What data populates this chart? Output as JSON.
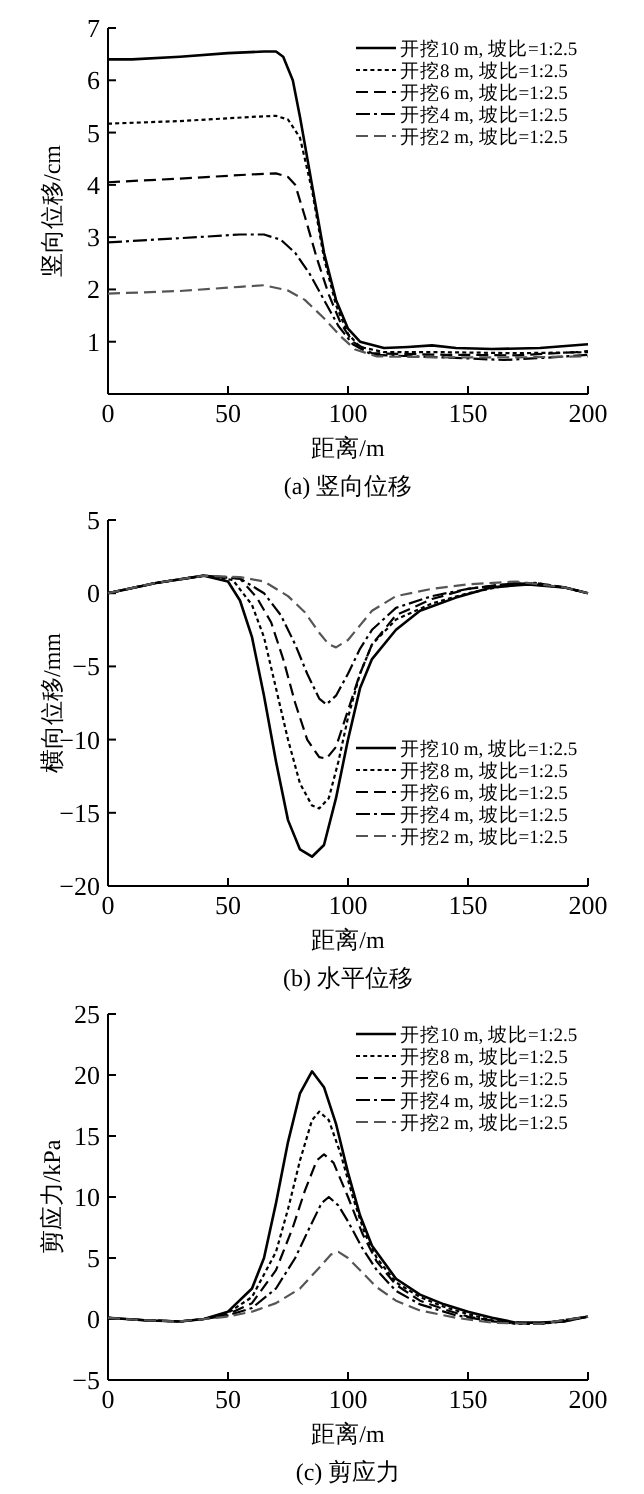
{
  "chart_data": [
    {
      "type": "line",
      "title": "(a) 竖向位移",
      "xlabel": "距离/m",
      "ylabel": "竖向位移/cm",
      "xlim": [
        0,
        200
      ],
      "ylim": [
        0,
        7
      ],
      "xticks": [
        0,
        50,
        100,
        150,
        200
      ],
      "yticks": [
        1,
        2,
        3,
        4,
        5,
        6,
        7
      ],
      "grid": false,
      "legend": "top right",
      "marker": "none",
      "series": [
        {
          "name": "开挖10 m, 坡比=1:2.5",
          "color": "#000000",
          "line_style": "solid",
          "x": [
            0,
            10,
            30,
            50,
            65,
            70,
            73,
            77,
            80,
            85,
            90,
            95,
            100,
            105,
            115,
            125,
            135,
            145,
            160,
            180,
            200
          ],
          "values": [
            6.4,
            6.4,
            6.45,
            6.52,
            6.55,
            6.55,
            6.45,
            6.0,
            5.3,
            4.0,
            2.7,
            1.8,
            1.25,
            1.0,
            0.88,
            0.9,
            0.93,
            0.88,
            0.86,
            0.88,
            0.95
          ]
        },
        {
          "name": "开挖8 m, 坡比=1:2.5",
          "color": "#000000",
          "line_style": "dotted",
          "x": [
            0,
            30,
            60,
            70,
            75,
            80,
            85,
            90,
            95,
            100,
            105,
            115,
            140,
            170,
            200
          ],
          "values": [
            5.17,
            5.22,
            5.3,
            5.32,
            5.25,
            4.9,
            3.9,
            2.6,
            1.7,
            1.15,
            0.9,
            0.8,
            0.8,
            0.78,
            0.8
          ]
        },
        {
          "name": "开挖6 m, 坡比=1:2.5",
          "color": "#000000",
          "line_style": "dashed",
          "x": [
            0,
            30,
            60,
            70,
            75,
            78,
            82,
            87,
            92,
            97,
            102,
            110,
            140,
            170,
            195,
            200
          ],
          "values": [
            4.05,
            4.12,
            4.2,
            4.22,
            4.15,
            4.0,
            3.4,
            2.6,
            1.9,
            1.35,
            1.0,
            0.78,
            0.75,
            0.74,
            0.8,
            0.82
          ]
        },
        {
          "name": "开挖4 m, 坡比=1:2.5",
          "color": "#000000",
          "line_style": "dashdot",
          "x": [
            0,
            30,
            55,
            65,
            72,
            78,
            84,
            90,
            96,
            102,
            110,
            140,
            165,
            185,
            200
          ],
          "values": [
            2.9,
            2.98,
            3.05,
            3.05,
            2.95,
            2.7,
            2.3,
            1.8,
            1.3,
            0.95,
            0.75,
            0.7,
            0.65,
            0.7,
            0.75
          ]
        },
        {
          "name": "开挖2 m, 坡比=1:2.5",
          "color": "#555555",
          "line_style": "dashed",
          "x": [
            0,
            30,
            55,
            65,
            75,
            82,
            90,
            97,
            103,
            112,
            140,
            170,
            200
          ],
          "values": [
            1.92,
            1.97,
            2.05,
            2.08,
            1.98,
            1.8,
            1.45,
            1.1,
            0.85,
            0.72,
            0.7,
            0.7,
            0.72
          ]
        }
      ]
    },
    {
      "type": "line",
      "title": "(b) 水平位移",
      "xlabel": "距离/m",
      "ylabel": "横向位移/mm",
      "xlim": [
        0,
        200
      ],
      "ylim": [
        -20,
        5
      ],
      "xticks": [
        0,
        50,
        100,
        150,
        200
      ],
      "yticks": [
        -20,
        -15,
        -10,
        -5,
        0,
        5
      ],
      "grid": false,
      "legend": "bottom right",
      "marker": "none",
      "series": [
        {
          "name": "开挖10 m, 坡比=1:2.5",
          "color": "#000000",
          "line_style": "solid",
          "x": [
            0,
            20,
            40,
            50,
            55,
            60,
            65,
            70,
            75,
            80,
            85,
            90,
            95,
            100,
            105,
            110,
            120,
            130,
            145,
            160,
            175,
            190,
            200
          ],
          "values": [
            0,
            0.7,
            1.2,
            0.8,
            -0.5,
            -3,
            -7,
            -11.5,
            -15.5,
            -17.5,
            -18,
            -17.2,
            -14,
            -10,
            -6.5,
            -4.5,
            -2.5,
            -1.2,
            -0.3,
            0.4,
            0.6,
            0.4,
            0
          ]
        },
        {
          "name": "开挖8 m, 坡比=1:2.5",
          "color": "#000000",
          "line_style": "dotted",
          "x": [
            0,
            20,
            40,
            52,
            60,
            65,
            70,
            75,
            80,
            85,
            88,
            92,
            96,
            100,
            105,
            110,
            120,
            135,
            150,
            165,
            178,
            190,
            200
          ],
          "values": [
            0,
            0.7,
            1.2,
            0.9,
            -0.8,
            -3,
            -6.5,
            -10,
            -13,
            -14.5,
            -14.7,
            -14,
            -11.5,
            -8.5,
            -5.5,
            -3.5,
            -1.8,
            -0.7,
            0,
            0.5,
            0.7,
            0.4,
            0
          ]
        },
        {
          "name": "开挖6 m, 坡比=1:2.5",
          "color": "#000000",
          "line_style": "dashed",
          "x": [
            0,
            20,
            40,
            55,
            62,
            68,
            73,
            78,
            83,
            88,
            91,
            95,
            100,
            105,
            110,
            120,
            135,
            150,
            165,
            178,
            190,
            200
          ],
          "values": [
            0,
            0.7,
            1.2,
            1,
            -0.3,
            -2,
            -4.5,
            -7.5,
            -10,
            -11.2,
            -11.3,
            -10.5,
            -8,
            -5.5,
            -3.5,
            -1.5,
            -0.4,
            0.3,
            0.6,
            0.7,
            0.4,
            0
          ]
        },
        {
          "name": "开挖4 m, 坡比=1:2.5",
          "color": "#000000",
          "line_style": "dashdot",
          "x": [
            0,
            20,
            40,
            55,
            65,
            72,
            78,
            83,
            88,
            91,
            95,
            100,
            105,
            110,
            120,
            135,
            150,
            170,
            190,
            200
          ],
          "values": [
            0,
            0.7,
            1.2,
            1,
            0,
            -1.5,
            -3.5,
            -5.5,
            -7.2,
            -7.6,
            -7,
            -5.5,
            -3.8,
            -2.5,
            -1,
            -0.2,
            0.3,
            0.7,
            0.4,
            0
          ]
        },
        {
          "name": "开挖2 m, 坡比=1:2.5",
          "color": "#555555",
          "line_style": "dashed",
          "x": [
            0,
            20,
            40,
            55,
            65,
            75,
            82,
            88,
            92,
            95,
            100,
            105,
            110,
            120,
            135,
            150,
            170,
            190,
            200
          ],
          "values": [
            0,
            0.7,
            1.2,
            1.1,
            0.8,
            -0.2,
            -1.3,
            -2.7,
            -3.5,
            -3.7,
            -3.2,
            -2.2,
            -1.2,
            -0.2,
            0.3,
            0.6,
            0.8,
            0.4,
            0
          ]
        }
      ]
    },
    {
      "type": "line",
      "title": "(c) 剪应力",
      "xlabel": "距离/m",
      "ylabel": "剪应力/kPa",
      "xlim": [
        0,
        200
      ],
      "ylim": [
        -5,
        25
      ],
      "xticks": [
        0,
        50,
        100,
        150,
        200
      ],
      "yticks": [
        -5,
        0,
        5,
        10,
        15,
        20,
        25
      ],
      "grid": false,
      "legend": "top right",
      "marker": "none",
      "series": [
        {
          "name": "开挖10 m, 坡比=1:2.5",
          "color": "#000000",
          "line_style": "solid",
          "x": [
            0,
            15,
            30,
            40,
            50,
            60,
            65,
            70,
            75,
            80,
            85,
            90,
            95,
            100,
            105,
            110,
            120,
            130,
            140,
            150,
            160,
            170,
            180,
            190,
            200
          ],
          "values": [
            0.1,
            -0.1,
            -0.2,
            0,
            0.6,
            2.5,
            5,
            9.5,
            14.5,
            18.5,
            20.3,
            19,
            16,
            12,
            8.5,
            6,
            3.3,
            2,
            1.2,
            0.6,
            0.1,
            -0.3,
            -0.3,
            -0.2,
            0.2
          ]
        },
        {
          "name": "开挖8 m, 坡比=1:2.5",
          "color": "#000000",
          "line_style": "dotted",
          "x": [
            0,
            15,
            30,
            40,
            50,
            60,
            70,
            75,
            80,
            85,
            88,
            92,
            97,
            102,
            107,
            112,
            120,
            130,
            140,
            150,
            160,
            170,
            180,
            190,
            200
          ],
          "values": [
            0.1,
            -0.1,
            -0.2,
            0,
            0.5,
            1.8,
            5.5,
            9,
            13,
            16.3,
            17,
            16.3,
            13.5,
            10,
            7,
            5,
            3,
            1.8,
            1,
            0.4,
            -0.1,
            -0.4,
            -0.4,
            -0.2,
            0.2
          ]
        },
        {
          "name": "开挖6 m, 坡比=1:2.5",
          "color": "#000000",
          "line_style": "dashed",
          "x": [
            0,
            15,
            30,
            40,
            50,
            60,
            70,
            77,
            82,
            87,
            90,
            94,
            100,
            106,
            112,
            120,
            130,
            140,
            150,
            165,
            180,
            200
          ],
          "values": [
            0.1,
            -0.1,
            -0.2,
            0,
            0.4,
            1.3,
            4,
            7.5,
            10.5,
            13,
            13.5,
            12.8,
            10,
            7,
            4.7,
            2.8,
            1.5,
            0.8,
            0.2,
            -0.3,
            -0.4,
            0.2
          ]
        },
        {
          "name": "开挖4 m, 坡比=1:2.5",
          "color": "#000000",
          "line_style": "dashdot",
          "x": [
            0,
            15,
            30,
            40,
            50,
            60,
            70,
            78,
            84,
            89,
            92,
            96,
            100,
            106,
            112,
            120,
            130,
            145,
            160,
            180,
            200
          ],
          "values": [
            0.1,
            -0.1,
            -0.2,
            0,
            0.3,
            0.9,
            2.5,
            5,
            7.5,
            9.5,
            10,
            9.3,
            8,
            5.8,
            4,
            2.3,
            1.2,
            0.3,
            -0.2,
            -0.4,
            0.2
          ]
        },
        {
          "name": "开挖2 m, 坡比=1:2.5",
          "color": "#555555",
          "line_style": "dashed",
          "x": [
            0,
            15,
            30,
            40,
            50,
            60,
            70,
            80,
            88,
            93,
            96,
            100,
            106,
            112,
            120,
            130,
            145,
            160,
            180,
            200
          ],
          "values": [
            0.1,
            -0.1,
            -0.2,
            0,
            0.2,
            0.6,
            1.3,
            2.5,
            4.2,
            5.3,
            5.5,
            5,
            3.8,
            2.6,
            1.5,
            0.7,
            0.1,
            -0.3,
            -0.4,
            0.2
          ]
        }
      ]
    }
  ]
}
